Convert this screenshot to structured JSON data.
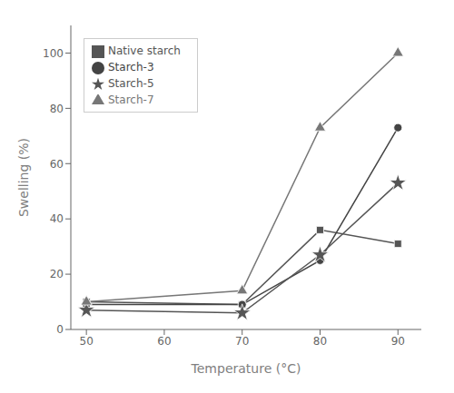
{
  "chart_data": {
    "type": "line",
    "xlabel": "Temperature (°C)",
    "ylabel": "Swelling (%)",
    "x": [
      50,
      70,
      80,
      90
    ],
    "xlim": [
      48,
      93
    ],
    "ylim": [
      0,
      110
    ],
    "xticks": [
      50,
      60,
      70,
      80,
      90
    ],
    "yticks": [
      0,
      20,
      40,
      60,
      80,
      100
    ],
    "grid": false,
    "legend": "upper left",
    "series": [
      {
        "name": "Native starch",
        "color": "#555555",
        "marker": "square",
        "values": [
          10,
          9,
          36,
          31
        ]
      },
      {
        "name": "Starch-3",
        "color": "#444444",
        "marker": "circle",
        "values": [
          9,
          9,
          25,
          73
        ]
      },
      {
        "name": "Starch-5",
        "color": "#555555",
        "marker": "star",
        "values": [
          7,
          6,
          27,
          53
        ]
      },
      {
        "name": "Starch-7",
        "color": "#777777",
        "marker": "triangle",
        "values": [
          10,
          14,
          73,
          100
        ]
      }
    ]
  }
}
